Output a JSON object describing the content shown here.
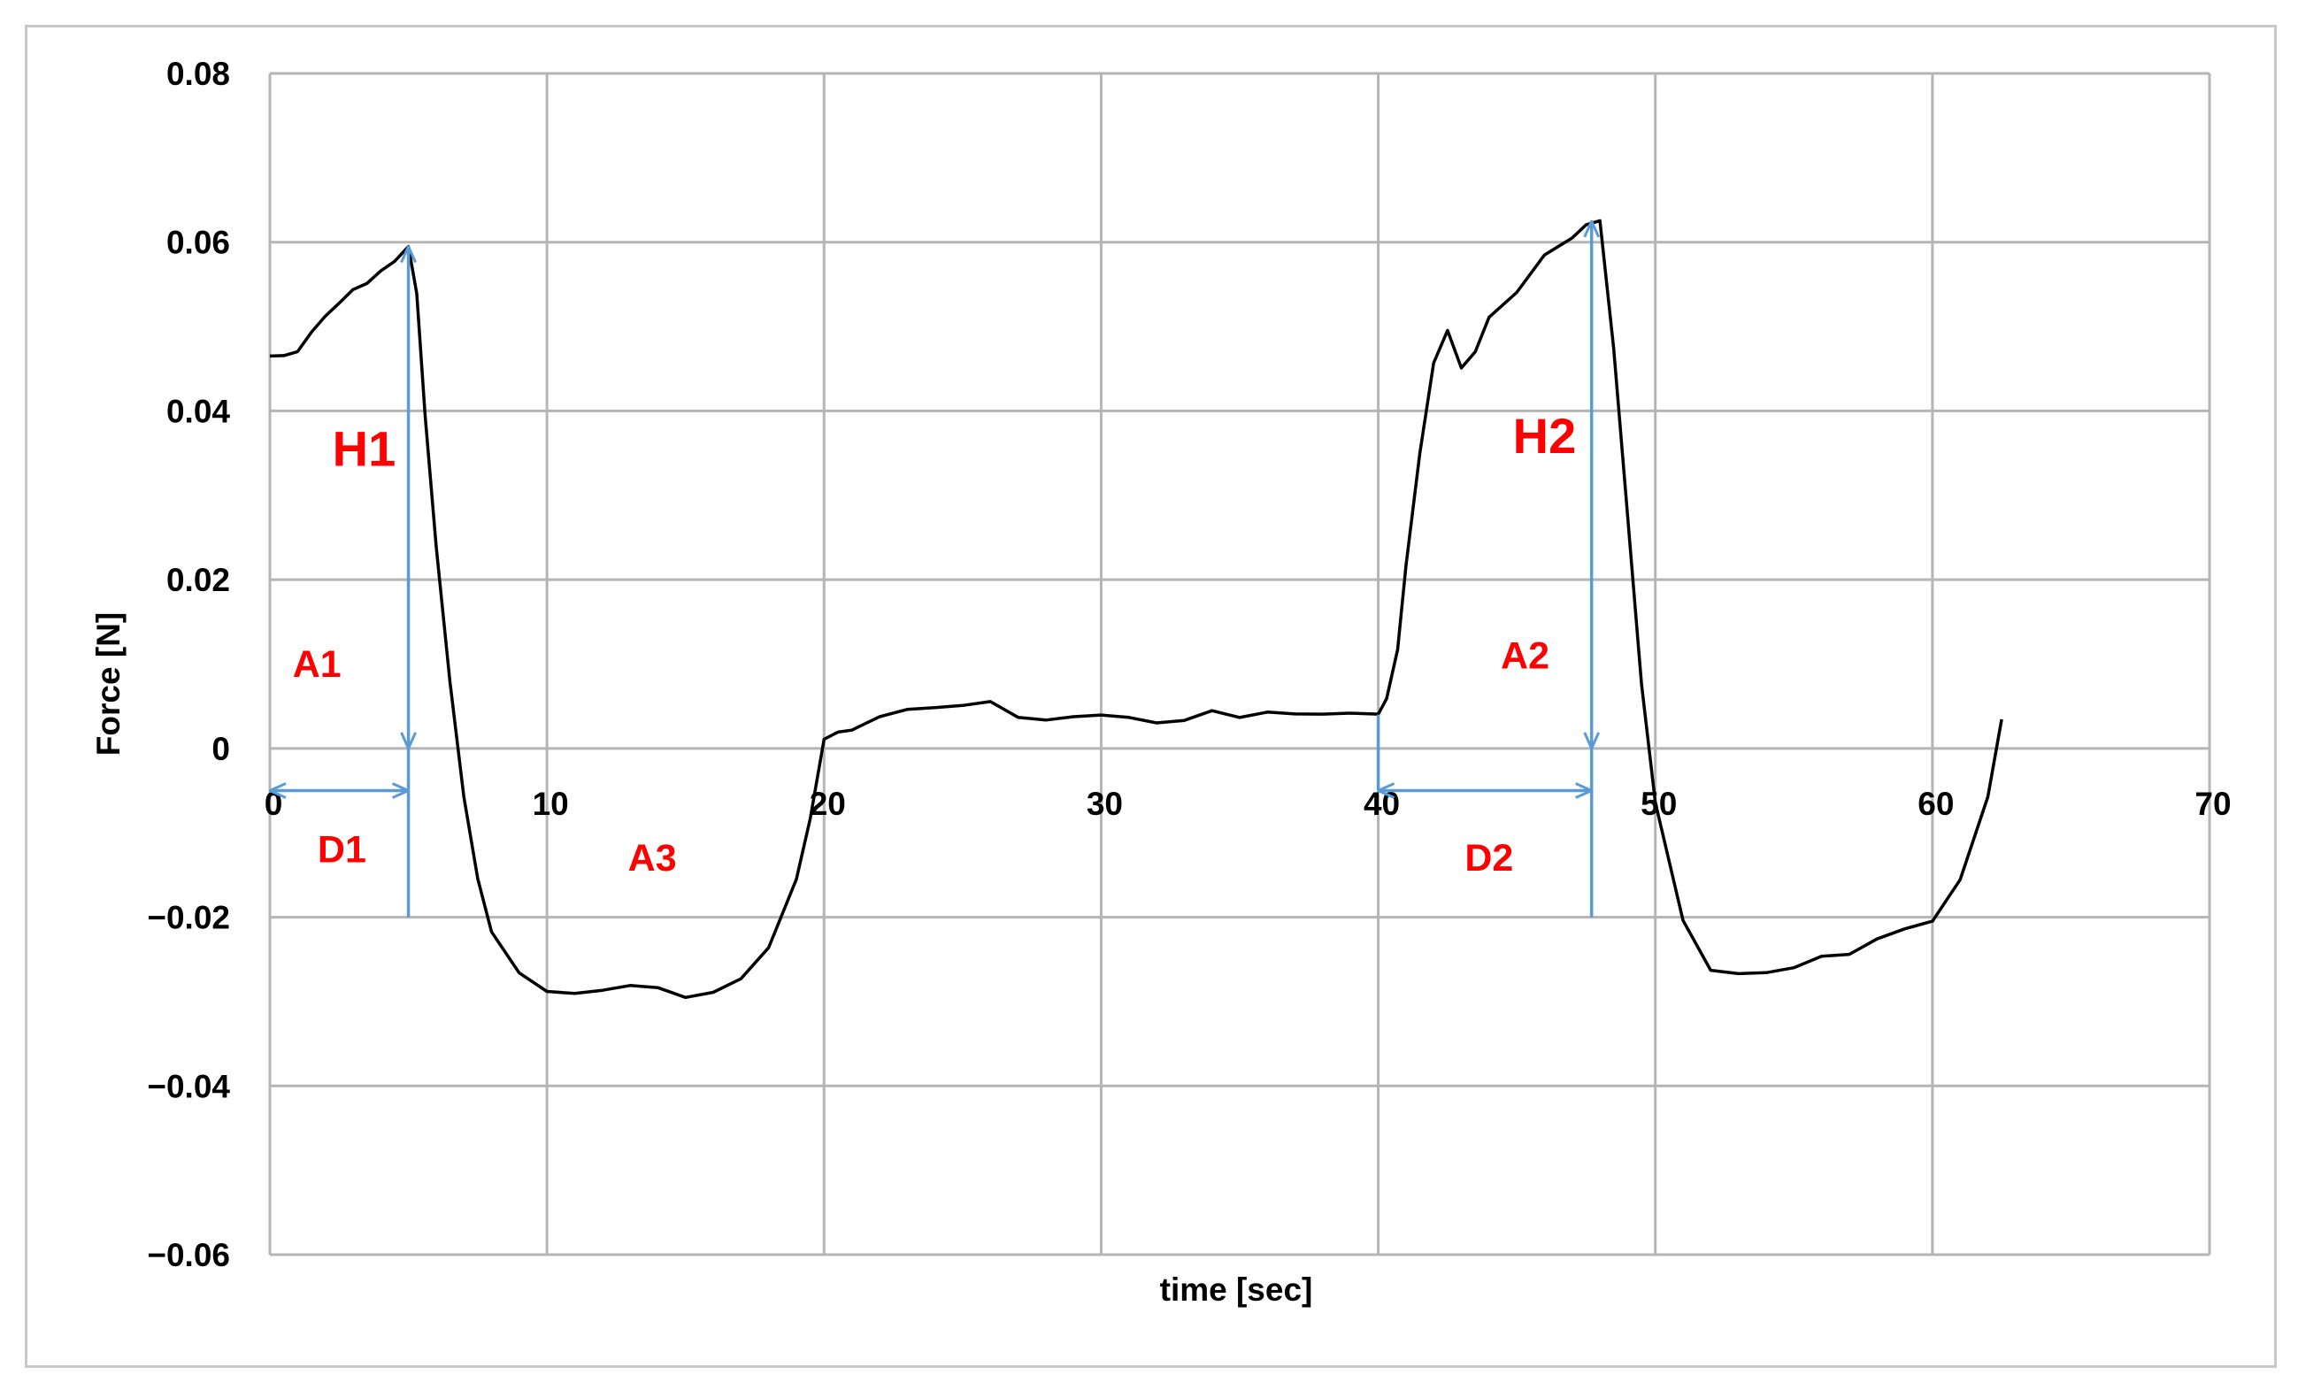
{
  "chart_data": {
    "type": "line",
    "xlabel": "time [sec]",
    "ylabel": "Force [N]",
    "xlim": [
      0,
      70
    ],
    "ylim": [
      -0.06,
      0.08
    ],
    "x_ticks": [
      0,
      10,
      20,
      30,
      40,
      50,
      60,
      70
    ],
    "y_ticks": [
      0.08,
      0.06,
      0.04,
      0.02,
      0,
      -0.02,
      -0.04,
      -0.06
    ],
    "x_tick_labels": [
      "0",
      "10",
      "20",
      "30",
      "40",
      "50",
      "60",
      "70"
    ],
    "y_tick_labels": [
      "0.08",
      "0.06",
      "0.04",
      "0.02",
      "0",
      "−0.02",
      "−0.04",
      "−0.06"
    ],
    "grid": true,
    "legend": "none",
    "series": [
      {
        "color": "#000000",
        "x": [
          0,
          0.5,
          1,
          1.5,
          2,
          2.5,
          3,
          3.5,
          4,
          4.5,
          5,
          5.3,
          5.6,
          6,
          6.5,
          7,
          7.5,
          8,
          9,
          10,
          11,
          12,
          13,
          14,
          15,
          16,
          17,
          18,
          19,
          19.5,
          20,
          20.5,
          21,
          22,
          23,
          24,
          25,
          26,
          27,
          28,
          29,
          30,
          31,
          32,
          33,
          34,
          35,
          36,
          37,
          38,
          39,
          40,
          40.3,
          40.7,
          41,
          41.5,
          42,
          42.5,
          43,
          43.5,
          44,
          45,
          46,
          47,
          47.5,
          48,
          48.5,
          49,
          49.5,
          50,
          51,
          52,
          53,
          54,
          55,
          56,
          57,
          58,
          59,
          60,
          61,
          62,
          62.5
        ],
        "y": [
          0.0465,
          0.046,
          0.047,
          0.049,
          0.051,
          0.0525,
          0.054,
          0.055,
          0.057,
          0.058,
          0.0595,
          0.054,
          0.04,
          0.024,
          0.008,
          -0.006,
          -0.016,
          -0.022,
          -0.027,
          -0.029,
          -0.0295,
          -0.029,
          -0.0285,
          -0.028,
          -0.029,
          -0.0285,
          -0.027,
          -0.023,
          -0.015,
          -0.008,
          0.0005,
          0.0015,
          0.002,
          0.0035,
          0.0045,
          0.0045,
          0.0045,
          0.005,
          0.004,
          0.0035,
          0.004,
          0.004,
          0.004,
          0.0035,
          0.0035,
          0.004,
          0.0035,
          0.004,
          0.004,
          0.004,
          0.004,
          0.004,
          0.006,
          0.012,
          0.022,
          0.035,
          0.046,
          0.05,
          0.0455,
          0.0475,
          0.051,
          0.054,
          0.058,
          0.0605,
          0.062,
          0.0625,
          0.047,
          0.028,
          0.008,
          -0.006,
          -0.02,
          -0.026,
          -0.0262,
          -0.026,
          -0.0255,
          -0.025,
          -0.0245,
          -0.023,
          -0.0215,
          -0.0205,
          -0.016,
          -0.006,
          0.004
        ]
      }
    ],
    "annotations": [
      {
        "text": "H1",
        "x": 3.4,
        "y": 0.0335,
        "size": "large"
      },
      {
        "text": "A1",
        "x": 1.7,
        "y": 0.0085,
        "size": "small"
      },
      {
        "text": "D1",
        "x": 2.6,
        "y": -0.0135,
        "size": "small"
      },
      {
        "text": "A3",
        "x": 13.8,
        "y": -0.0145,
        "size": "small"
      },
      {
        "text": "H2",
        "x": 46.0,
        "y": 0.035,
        "size": "large"
      },
      {
        "text": "A2",
        "x": 45.3,
        "y": 0.0095,
        "size": "small"
      },
      {
        "text": "D2",
        "x": 44.0,
        "y": -0.0145,
        "size": "small"
      }
    ],
    "arrows": [
      {
        "name": "H1",
        "from": [
          5,
          0.0
        ],
        "to": [
          5,
          0.0595
        ],
        "style": "double"
      },
      {
        "name": "D1",
        "from": [
          0,
          -0.005
        ],
        "to": [
          5,
          -0.005
        ],
        "style": "double"
      },
      {
        "name": "D1-tail",
        "from": [
          5,
          0.0
        ],
        "to": [
          5,
          -0.02
        ],
        "style": "line"
      },
      {
        "name": "H2",
        "from": [
          47.7,
          0.0
        ],
        "to": [
          47.7,
          0.0625
        ],
        "style": "double"
      },
      {
        "name": "D2",
        "from": [
          40,
          -0.005
        ],
        "to": [
          47.7,
          -0.005
        ],
        "style": "double"
      },
      {
        "name": "D2-left",
        "from": [
          40,
          0.004
        ],
        "to": [
          40,
          -0.005
        ],
        "style": "line"
      },
      {
        "name": "D2-tail",
        "from": [
          47.7,
          0.0
        ],
        "to": [
          47.7,
          -0.02
        ],
        "style": "line"
      }
    ],
    "colors": {
      "grid": "#b5b5b5",
      "trace": "#000000",
      "arrow": "#5b9bd5",
      "label": "#ff0000"
    }
  }
}
